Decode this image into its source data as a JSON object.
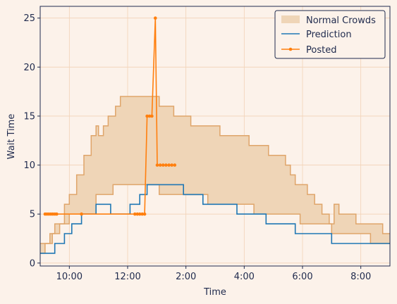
{
  "chart_data": {
    "type": "line",
    "xlabel": "Time",
    "ylabel": "Wait Time",
    "xlim": [
      "09:00",
      "21:00"
    ],
    "ylim": [
      -0.3,
      26.2
    ],
    "grid": true,
    "legend_position": "top-right",
    "x_ticks": [
      {
        "value": "10:00",
        "label": "10:00"
      },
      {
        "value": "12:00",
        "label": "12:00"
      },
      {
        "value": "14:00",
        "label": "2:00"
      },
      {
        "value": "16:00",
        "label": "4:00"
      },
      {
        "value": "18:00",
        "label": "6:00"
      },
      {
        "value": "20:00",
        "label": "8:00"
      }
    ],
    "y_ticks": [
      0,
      5,
      10,
      15,
      20,
      25
    ],
    "legend": [
      "Normal Crowds",
      "Prediction",
      "Posted"
    ],
    "colors": {
      "band_fill": "#efd5b7",
      "band_edge": "#dfa56a",
      "prediction": "#1f77b4",
      "posted": "#ff7f0e",
      "grid": "#f2d2b6",
      "axis": "#1f2a4d"
    },
    "series": [
      {
        "name": "Normal Crowds",
        "kind": "band",
        "lower": [
          [
            "09:00",
            1
          ],
          [
            "09:10",
            2
          ],
          [
            "09:25",
            3
          ],
          [
            "09:40",
            4
          ],
          [
            "10:00",
            5
          ],
          [
            "10:55",
            7
          ],
          [
            "11:20",
            7
          ],
          [
            "11:30",
            8
          ],
          [
            "12:40",
            8
          ],
          [
            "13:05",
            7
          ],
          [
            "14:45",
            6
          ],
          [
            "15:30",
            6
          ],
          [
            "16:05",
            6
          ],
          [
            "16:20",
            5
          ],
          [
            "17:00",
            5
          ],
          [
            "17:55",
            4
          ],
          [
            "19:00",
            3
          ],
          [
            "20:00",
            3
          ],
          [
            "20:20",
            2
          ],
          [
            "21:00",
            2
          ]
        ],
        "upper": [
          [
            "09:00",
            2
          ],
          [
            "09:20",
            3
          ],
          [
            "09:30",
            4
          ],
          [
            "09:50",
            6
          ],
          [
            "10:00",
            7
          ],
          [
            "10:15",
            9
          ],
          [
            "10:30",
            11
          ],
          [
            "10:45",
            13
          ],
          [
            "10:55",
            14
          ],
          [
            "11:00",
            13
          ],
          [
            "11:10",
            14
          ],
          [
            "11:20",
            15
          ],
          [
            "11:35",
            16
          ],
          [
            "11:45",
            17
          ],
          [
            "13:00",
            17
          ],
          [
            "13:05",
            16
          ],
          [
            "13:30",
            16
          ],
          [
            "13:35",
            15
          ],
          [
            "14:00",
            15
          ],
          [
            "14:10",
            14
          ],
          [
            "15:00",
            14
          ],
          [
            "15:10",
            13
          ],
          [
            "16:00",
            13
          ],
          [
            "16:10",
            12
          ],
          [
            "16:35",
            12
          ],
          [
            "16:50",
            11
          ],
          [
            "17:15",
            11
          ],
          [
            "17:25",
            10
          ],
          [
            "17:35",
            9
          ],
          [
            "17:45",
            8
          ],
          [
            "18:00",
            8
          ],
          [
            "18:10",
            7
          ],
          [
            "18:25",
            6
          ],
          [
            "18:40",
            5
          ],
          [
            "18:55",
            4
          ],
          [
            "19:05",
            6
          ],
          [
            "19:15",
            5
          ],
          [
            "19:40",
            5
          ],
          [
            "19:50",
            4
          ],
          [
            "20:40",
            4
          ],
          [
            "20:45",
            3
          ],
          [
            "21:00",
            3
          ]
        ]
      },
      {
        "name": "Prediction",
        "kind": "line",
        "points": [
          [
            "09:00",
            1
          ],
          [
            "09:25",
            1
          ],
          [
            "09:30",
            2
          ],
          [
            "09:45",
            2
          ],
          [
            "09:50",
            3
          ],
          [
            "10:00",
            3
          ],
          [
            "10:05",
            4
          ],
          [
            "10:20",
            4
          ],
          [
            "10:25",
            5
          ],
          [
            "10:50",
            5
          ],
          [
            "10:55",
            6
          ],
          [
            "11:20",
            6
          ],
          [
            "11:25",
            5
          ],
          [
            "12:00",
            5
          ],
          [
            "12:05",
            6
          ],
          [
            "12:20",
            6
          ],
          [
            "12:25",
            7
          ],
          [
            "12:35",
            7
          ],
          [
            "12:40",
            8
          ],
          [
            "13:50",
            8
          ],
          [
            "13:55",
            7
          ],
          [
            "14:30",
            7
          ],
          [
            "14:35",
            6
          ],
          [
            "15:40",
            6
          ],
          [
            "15:45",
            5
          ],
          [
            "16:40",
            5
          ],
          [
            "16:45",
            4
          ],
          [
            "17:40",
            4
          ],
          [
            "17:45",
            3
          ],
          [
            "18:55",
            3
          ],
          [
            "19:00",
            2
          ],
          [
            "21:00",
            2
          ]
        ]
      },
      {
        "name": "Posted",
        "kind": "line-markers",
        "points": [
          [
            "09:10",
            5
          ],
          [
            "09:14",
            5
          ],
          [
            "09:18",
            5
          ],
          [
            "09:22",
            5
          ],
          [
            "09:26",
            5
          ],
          [
            "09:30",
            5
          ],
          [
            "09:34",
            5
          ],
          [
            "10:25",
            5
          ],
          [
            "12:15",
            5
          ],
          [
            "12:20",
            5
          ],
          [
            "12:25",
            5
          ],
          [
            "12:30",
            5
          ],
          [
            "12:35",
            5
          ],
          [
            "12:40",
            15
          ],
          [
            "12:45",
            15
          ],
          [
            "12:50",
            15
          ],
          [
            "12:57",
            25
          ],
          [
            "13:01",
            10
          ],
          [
            "13:07",
            10
          ],
          [
            "13:13",
            10
          ],
          [
            "13:19",
            10
          ],
          [
            "13:25",
            10
          ],
          [
            "13:31",
            10
          ],
          [
            "13:37",
            10
          ]
        ]
      }
    ]
  }
}
